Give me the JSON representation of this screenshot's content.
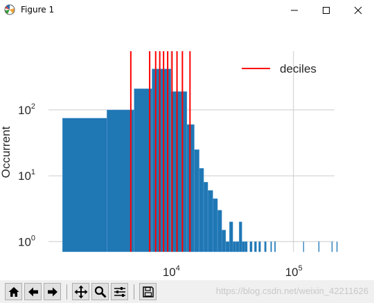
{
  "window": {
    "title": "Figure 1",
    "controls": [
      "minimize",
      "maximize",
      "close"
    ]
  },
  "chart_data": {
    "type": "bar",
    "title": "",
    "xlabel": "",
    "ylabel": "Occurrent",
    "x_scale": "log",
    "y_scale": "log",
    "xlim": [
      1000,
      270000
    ],
    "ylim": [
      0.7,
      780
    ],
    "x_ticks": [
      {
        "value": 10000,
        "base": "10",
        "exp": "4"
      },
      {
        "value": 100000,
        "base": "10",
        "exp": "5"
      }
    ],
    "y_ticks": [
      {
        "value": 1,
        "base": "10",
        "exp": "0"
      },
      {
        "value": 10,
        "base": "10",
        "exp": "1"
      },
      {
        "value": 100,
        "base": "10",
        "exp": "2"
      }
    ],
    "grid": true,
    "bar_color": "#1f77b4",
    "bars": [
      {
        "x0": 1300,
        "x1": 3000,
        "count": 75
      },
      {
        "x0": 3000,
        "x1": 5000,
        "count": 100
      },
      {
        "x0": 5000,
        "x1": 7000,
        "count": 210
      },
      {
        "x0": 7000,
        "x1": 10000,
        "count": 420
      },
      {
        "x0": 10000,
        "x1": 13500,
        "count": 190
      },
      {
        "x0": 13500,
        "x1": 15500,
        "count": 60
      },
      {
        "x0": 15500,
        "x1": 17000,
        "count": 25
      },
      {
        "x0": 17000,
        "x1": 18500,
        "count": 13
      },
      {
        "x0": 18500,
        "x1": 20000,
        "count": 8
      },
      {
        "x0": 20000,
        "x1": 22000,
        "count": 6
      },
      {
        "x0": 22000,
        "x1": 24000,
        "count": 4.5
      },
      {
        "x0": 24000,
        "x1": 26000,
        "count": 3
      },
      {
        "x0": 26000,
        "x1": 28000,
        "count": 1.5
      },
      {
        "x0": 28000,
        "x1": 30000,
        "count": 1
      },
      {
        "x0": 30000,
        "x1": 32000,
        "count": 2
      },
      {
        "x0": 32000,
        "x1": 34000,
        "count": 1
      },
      {
        "x0": 34000,
        "x1": 36000,
        "count": 1
      },
      {
        "x0": 36000,
        "x1": 38000,
        "count": 2
      },
      {
        "x0": 38000,
        "x1": 40000,
        "count": 1
      },
      {
        "x0": 40000,
        "x1": 42000,
        "count": 1
      },
      {
        "x0": 44000,
        "x1": 46000,
        "count": 1
      },
      {
        "x0": 48000,
        "x1": 50000,
        "count": 1
      },
      {
        "x0": 52000,
        "x1": 54000,
        "count": 1
      },
      {
        "x0": 58000,
        "x1": 60000,
        "count": 1
      },
      {
        "x0": 65000,
        "x1": 66500,
        "count": 1
      },
      {
        "x0": 70000,
        "x1": 71500,
        "count": 1
      },
      {
        "x0": 120000,
        "x1": 121500,
        "count": 1
      },
      {
        "x0": 160000,
        "x1": 161500,
        "count": 1
      },
      {
        "x0": 205000,
        "x1": 206500,
        "count": 1
      },
      {
        "x0": 225000,
        "x1": 226500,
        "count": 1
      }
    ],
    "series": [
      {
        "name": "deciles",
        "type": "vline",
        "color": "#ff0000",
        "x": [
          4700,
          6700,
          7500,
          8100,
          8700,
          9400,
          10200,
          11200,
          12400,
          14300
        ]
      }
    ],
    "legend": {
      "placement": "top-right",
      "entries": [
        {
          "label": "deciles",
          "color": "#ff0000"
        }
      ]
    }
  },
  "toolbar": {
    "buttons": [
      {
        "name": "home-icon",
        "label": "home"
      },
      {
        "name": "back-icon",
        "label": "back"
      },
      {
        "name": "forward-icon",
        "label": "forward"
      },
      {
        "name": "pan-icon",
        "label": "pan"
      },
      {
        "name": "zoom-icon",
        "label": "zoom"
      },
      {
        "name": "configure-subplots-icon",
        "label": "configure subplots"
      },
      {
        "name": "save-icon",
        "label": "save"
      }
    ],
    "watermark": "https://blog.csdn.net/weixin_42211626"
  }
}
